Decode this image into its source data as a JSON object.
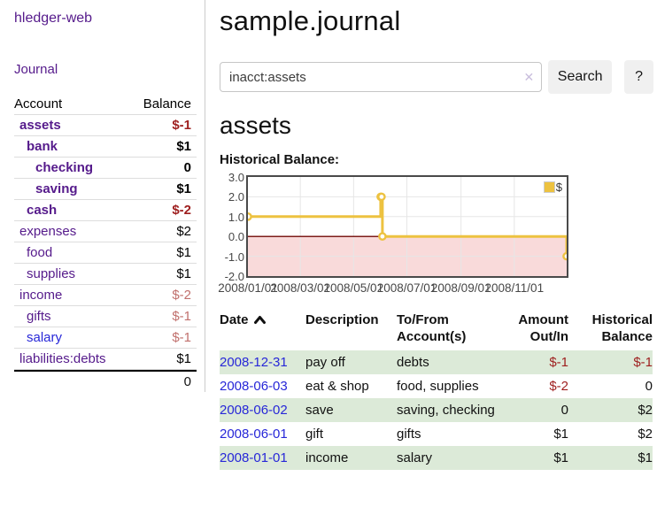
{
  "colors": {
    "purple": "#551a8b",
    "blue": "#2727d8",
    "red-dark": "#9e1e1e",
    "red-light": "#c1706d",
    "stripe": "#dcead8",
    "gold": "#edc240",
    "pink": "#f9dada",
    "zero": "#7e1d1a",
    "grid": "#e6e6e6",
    "chart-border": "#4a4a4a",
    "btn-bg": "#f0f0f0",
    "divider": "#cccccc"
  },
  "sidebar": {
    "brand": "hledger-web",
    "journal_link": "Journal",
    "accounts": {
      "header": {
        "account": "Account",
        "balance": "Balance"
      },
      "rows": [
        {
          "label": "assets",
          "balance": "$-1"
        },
        {
          "label": "bank",
          "balance": "$1"
        },
        {
          "label": "checking",
          "balance": "0"
        },
        {
          "label": "saving",
          "balance": "$1"
        },
        {
          "label": "cash",
          "balance": "$-2"
        },
        {
          "label": "expenses",
          "balance": "$2"
        },
        {
          "label": "food",
          "balance": "$1"
        },
        {
          "label": "supplies",
          "balance": "$1"
        },
        {
          "label": "income",
          "balance": "$-2"
        },
        {
          "label": "gifts",
          "balance": "$-1"
        },
        {
          "label": "salary",
          "balance": "$-1"
        },
        {
          "label": "liabilities:debts",
          "balance": "$1"
        }
      ],
      "total": "0"
    }
  },
  "main": {
    "title": "sample.journal",
    "search": {
      "value": "inacct:assets",
      "clear_icon": "✕",
      "button": "Search",
      "help": "?"
    },
    "heading": "assets",
    "chart_label": "Historical Balance:",
    "register": {
      "headers": {
        "date": "Date",
        "description": "Description",
        "accounts": "To/From Account(s)",
        "amount": "Amount Out/In",
        "balance": "Historical Balance"
      },
      "rows": [
        {
          "date": "2008-12-31",
          "description": "pay off",
          "accounts": "debts",
          "amount": "$-1",
          "balance": "$-1"
        },
        {
          "date": "2008-06-03",
          "description": "eat & shop",
          "accounts": "food, supplies",
          "amount": "$-2",
          "balance": "0"
        },
        {
          "date": "2008-06-02",
          "description": "save",
          "accounts": "saving, checking",
          "amount": "0",
          "balance": "$2"
        },
        {
          "date": "2008-06-01",
          "description": "gift",
          "accounts": "gifts",
          "amount": "$1",
          "balance": "$2"
        },
        {
          "date": "2008-01-01",
          "description": "income",
          "accounts": "salary",
          "amount": "$1",
          "balance": "$1"
        }
      ]
    }
  },
  "chart_data": {
    "type": "line",
    "title": "Historical Balance:",
    "steps": true,
    "series": [
      {
        "name": "$",
        "color": "#edc240",
        "x": [
          "2008-01-01",
          "2008-06-01",
          "2008-06-02",
          "2008-06-03",
          "2008-12-31"
        ],
        "values": [
          1,
          2,
          2,
          0,
          -1
        ]
      }
    ],
    "point_days": [
      0,
      152,
      153,
      154,
      365
    ],
    "x_tick_labels": [
      "2008/01/01",
      "2008/03/01",
      "2008/05/01",
      "2008/07/01",
      "2008/09/01",
      "2008/11/01"
    ],
    "x_tick_days": [
      0,
      60,
      121,
      182,
      244,
      305
    ],
    "y_tick_labels": [
      "3.0",
      "2.0",
      "1.0",
      "0.0",
      "-1.0",
      "-2.0"
    ],
    "y_ticks": [
      3,
      2,
      1,
      0,
      -1,
      -2
    ],
    "ylim": [
      -2,
      3
    ],
    "xlim_days": [
      0,
      365
    ],
    "grid": true,
    "legend": {
      "label": "$",
      "position": "top-right"
    },
    "negative_region_shaded": true,
    "zero_line": true
  }
}
